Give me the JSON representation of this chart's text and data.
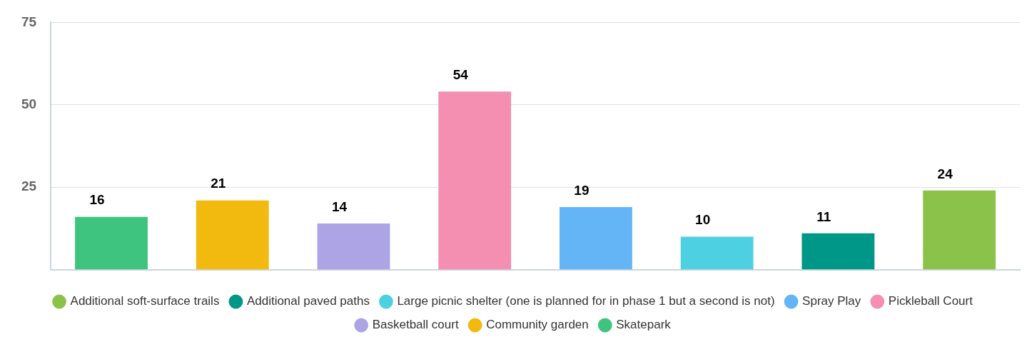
{
  "chart_data": {
    "type": "bar",
    "categories": [
      null,
      null,
      null,
      null,
      null,
      null,
      null,
      null
    ],
    "series": [
      {
        "name": "Additional soft-surface trails",
        "color": "#8bc34a",
        "values": [
          null,
          null,
          null,
          null,
          null,
          null,
          null,
          24
        ]
      },
      {
        "name": "Additional paved paths",
        "color": "#009688",
        "values": [
          null,
          null,
          null,
          null,
          null,
          null,
          11,
          null
        ]
      },
      {
        "name": "Large picnic shelter (one is planned for in phase 1 but a second is not)",
        "color": "#4dd0e1",
        "values": [
          null,
          null,
          null,
          null,
          null,
          10,
          null,
          null
        ]
      },
      {
        "name": "Spray Play",
        "color": "#64b5f6",
        "values": [
          null,
          null,
          null,
          null,
          19,
          null,
          null,
          null
        ]
      },
      {
        "name": "Pickleball Court",
        "color": "#f48fb1",
        "values": [
          null,
          null,
          null,
          54,
          null,
          null,
          null,
          null
        ]
      },
      {
        "name": "Basketball court",
        "color": "#ada4e6",
        "values": [
          null,
          null,
          14,
          null,
          null,
          null,
          null,
          null
        ]
      },
      {
        "name": "Community garden",
        "color": "#f2b90f",
        "values": [
          null,
          21,
          null,
          null,
          null,
          null,
          null,
          null
        ]
      },
      {
        "name": "Skatepark",
        "color": "#3ec47f",
        "values": [
          16,
          null,
          null,
          null,
          null,
          null,
          null,
          null
        ]
      }
    ],
    "ylim": [
      0,
      75
    ],
    "yticks": [
      25,
      50,
      75
    ],
    "grid": "y",
    "legend": "bottom",
    "data_labels": true
  }
}
